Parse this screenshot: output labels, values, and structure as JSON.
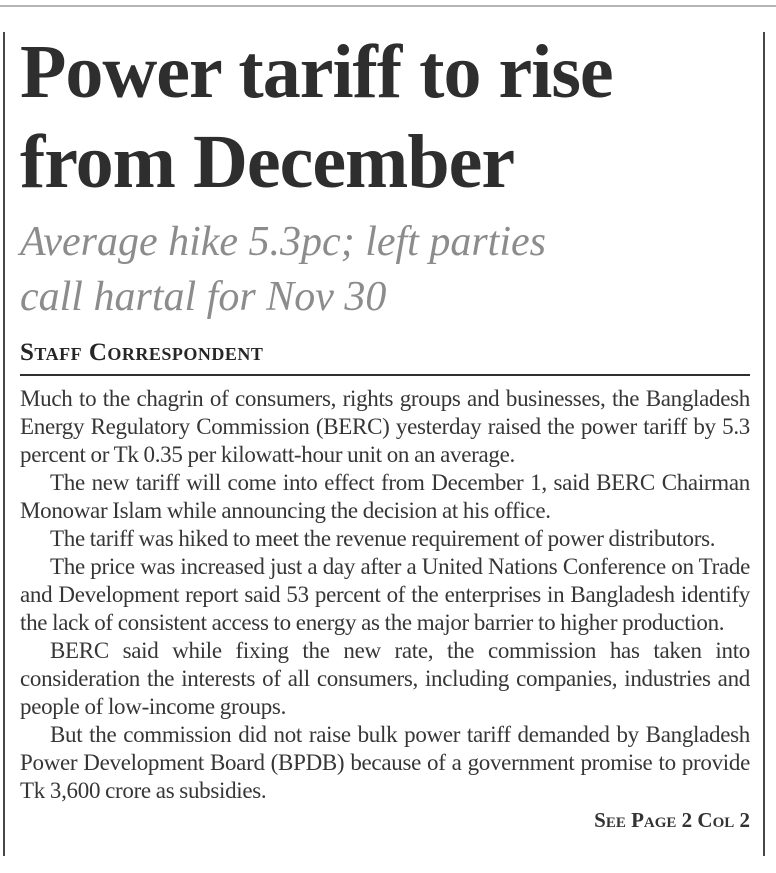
{
  "article": {
    "headline_lines": [
      "Power tariff to rise",
      "from December"
    ],
    "subheadline_lines": [
      "Average hike 5.3pc; left parties",
      "call hartal for Nov 30"
    ],
    "byline": "Staff Correspondent",
    "paragraphs": [
      "Much to the chagrin of consumers, rights groups and businesses, the Bangladesh Energy Regulatory Commission (BERC) yesterday raised the power tariff by 5.3 percent or Tk 0.35 per kilowatt-hour unit on an average.",
      "The new tariff will come into effect from December 1, said BERC Chairman Monowar Islam while announcing the decision at his office.",
      "The tariff was hiked to meet the revenue requirement of power distributors.",
      "The price was increased just a day after a United Nations Conference on Trade and Development report said 53 percent of the enterprises in Bangladesh identify the lack of consistent access to energy as the major barrier to higher production.",
      "BERC said while fixing the new rate, the commission has taken into consideration the interests of all consumers, including companies, industries and people of low-income groups.",
      "But the commission did not raise bulk power tariff demanded by Bangladesh Power Development Board (BPDB) because of a government promise to provide Tk 3,600 crore as subsidies."
    ],
    "continuation": "See Page 2 Col 2"
  },
  "colors": {
    "ink": "#2e2e2e",
    "body-ink": "#363636",
    "muted": "#8c8c8c",
    "rule-dark": "#474747",
    "rule-light": "#b5b5b5"
  }
}
